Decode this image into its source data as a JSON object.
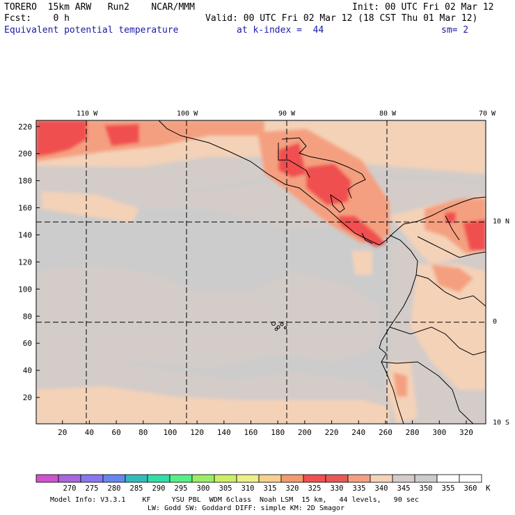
{
  "header": {
    "model": "TORERO  15km ARW   Run2    NCAR/MMM",
    "init": "Init: 00 UTC Fri 02 Mar 12",
    "fcst": "Fcst:    0 h",
    "valid": "Valid: 00 UTC Fri 02 Mar 12 (18 CST Thu 01 Mar 12)",
    "field": "Equivalent potential temperature",
    "kindex": "at k-index =  44",
    "sm": "sm= 2"
  },
  "map": {
    "lon_labels": [
      "110 W",
      "100 W",
      "90 W",
      "80 W",
      "70 W"
    ],
    "lat_labels": [
      "10 N",
      "0",
      "10 S"
    ],
    "x_ticks": [
      "20",
      "40",
      "60",
      "80",
      "100",
      "120",
      "140",
      "160",
      "180",
      "200",
      "220",
      "240",
      "260",
      "280",
      "300",
      "320"
    ],
    "y_ticks": [
      "220",
      "200",
      "180",
      "160",
      "140",
      "120",
      "100",
      "80",
      "60",
      "40",
      "20"
    ],
    "x_range": [
      1,
      334
    ],
    "y_range": [
      1,
      224
    ]
  },
  "colorbar": {
    "labels": [
      "270",
      "275",
      "280",
      "285",
      "290",
      "295",
      "300",
      "305",
      "310",
      "315",
      "320",
      "325",
      "330",
      "335",
      "340",
      "345",
      "350",
      "355",
      "360"
    ],
    "unit": "K",
    "colors": [
      "#cc55cc",
      "#aa66dd",
      "#8877ee",
      "#6688ee",
      "#33bbbb",
      "#33ddaa",
      "#55ee88",
      "#99ee66",
      "#ccee66",
      "#eeee88",
      "#f5d090",
      "#f49a70",
      "#f05050",
      "#e85858",
      "#f4a080",
      "#f4d2b8",
      "#d4ccc8",
      "#cccccc",
      "#ffffff",
      "#ffffff"
    ]
  },
  "footer": {
    "line1": "Model Info: V3.3.1    KF     YSU PBL  WDM 6class  Noah LSM  15 km,   44 levels,   90 sec",
    "line2": "LW: Godd SW: Goddard DIFF: simple KM: 2D Smagor"
  },
  "field_colors": {
    "gray": "#cccccc",
    "taupe": "#d4ccc8",
    "peach": "#f4d2b8",
    "salmon": "#f4a080",
    "red": "#f05050"
  }
}
